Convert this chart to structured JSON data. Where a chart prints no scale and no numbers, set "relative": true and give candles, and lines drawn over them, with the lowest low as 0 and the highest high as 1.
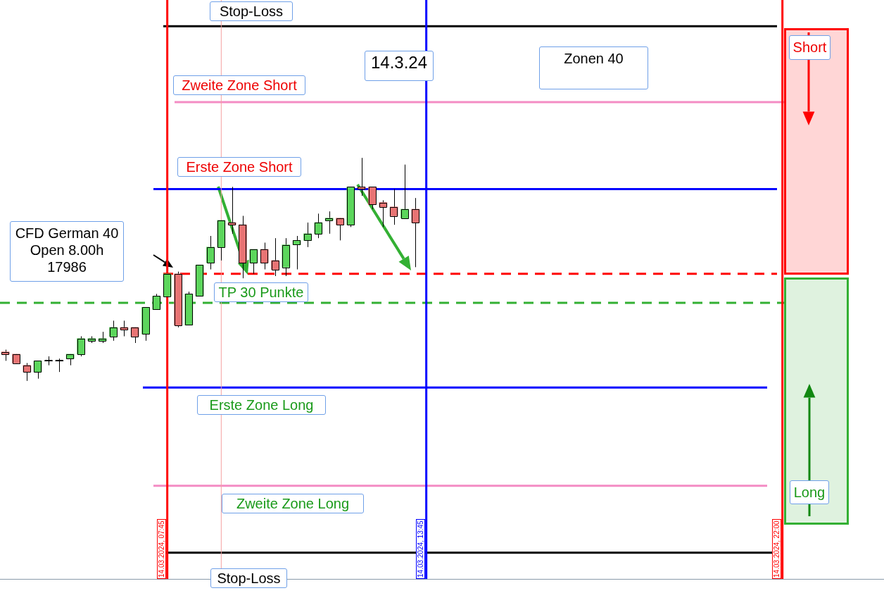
{
  "chart_data": {
    "type": "candlestick",
    "relative": true,
    "categories": [
      null,
      null,
      null,
      null,
      null,
      null,
      null,
      null,
      null,
      null,
      null,
      null,
      null,
      null,
      null,
      null,
      null,
      null,
      null,
      null,
      null,
      null,
      null,
      null,
      null,
      null,
      null,
      null,
      null,
      null,
      null,
      null,
      null,
      null,
      null,
      null,
      null,
      null,
      null
    ],
    "ohlc": [
      [
        0.13,
        0.14,
        0.09,
        0.12
      ],
      [
        0.12,
        0.12,
        0.08,
        0.08
      ],
      [
        0.07,
        0.08,
        0,
        0.04
      ],
      [
        0.04,
        0.09,
        0.01,
        0.09
      ],
      [
        0.09,
        0.11,
        0.07,
        0.09
      ],
      [
        0.09,
        0.1,
        0.04,
        0.09
      ],
      [
        0.1,
        0.12,
        0.07,
        0.12
      ],
      [
        0.12,
        0.2,
        0.11,
        0.19
      ],
      [
        0.18,
        0.2,
        0.17,
        0.19
      ],
      [
        0.18,
        0.22,
        0.17,
        0.19
      ],
      [
        0.2,
        0.27,
        0.18,
        0.24
      ],
      [
        0.24,
        0.27,
        0.2,
        0.23
      ],
      [
        0.24,
        0.24,
        0.17,
        0.2
      ],
      [
        0.21,
        0.33,
        0.18,
        0.33
      ],
      [
        0.32,
        0.39,
        0.32,
        0.38
      ],
      [
        0.38,
        0.48,
        0.38,
        0.48
      ],
      [
        0.48,
        0.49,
        0.24,
        0.25
      ],
      [
        0.25,
        0.4,
        0.25,
        0.39
      ],
      [
        0.38,
        0.52,
        0.38,
        0.52
      ],
      [
        0.53,
        0.65,
        0.5,
        0.6
      ],
      [
        0.6,
        0.72,
        0.54,
        0.72
      ],
      [
        0.71,
        0.87,
        0.66,
        0.7
      ],
      [
        0.7,
        0.74,
        0.46,
        0.53
      ],
      [
        0.53,
        0.59,
        0.48,
        0.59
      ],
      [
        0.59,
        0.62,
        0.5,
        0.53
      ],
      [
        0.54,
        0.64,
        0.47,
        0.5
      ],
      [
        0.51,
        0.64,
        0.47,
        0.61
      ],
      [
        0.61,
        0.65,
        0.5,
        0.63
      ],
      [
        0.63,
        0.71,
        0.6,
        0.66
      ],
      [
        0.66,
        0.75,
        0.64,
        0.71
      ],
      [
        0.72,
        0.76,
        0.66,
        0.73
      ],
      [
        0.73,
        0.73,
        0.63,
        0.7
      ],
      [
        0.7,
        0.87,
        0.69,
        0.87
      ],
      [
        0.87,
        1,
        0.83,
        0.86
      ],
      [
        0.87,
        0.87,
        0.77,
        0.79
      ],
      [
        0.8,
        0.81,
        0.69,
        0.78
      ],
      [
        0.78,
        0.86,
        0.7,
        0.74
      ],
      [
        0.73,
        0.97,
        0.73,
        0.77
      ],
      [
        0.77,
        0.82,
        0.51,
        0.71
      ]
    ],
    "colors": [
      "#e87474",
      "#e87474",
      "#e87474",
      "#5cd65c",
      "#000000",
      "#000000",
      "#5cd65c",
      "#5cd65c",
      "#5cd65c",
      "#5cd65c",
      "#5cd65c",
      "#e87474",
      "#e87474",
      "#5cd65c",
      "#5cd65c",
      "#5cd65c",
      "#e87474",
      "#5cd65c",
      "#5cd65c",
      "#5cd65c",
      "#5cd65c",
      "#e87474",
      "#e87474",
      "#5cd65c",
      "#e87474",
      "#e87474",
      "#5cd65c",
      "#5cd65c",
      "#5cd65c",
      "#5cd65c",
      "#5cd65c",
      "#e87474",
      "#5cd65c",
      "#e87474",
      "#e87474",
      "#e87474",
      "#e87474",
      "#5cd65c",
      "#e87474"
    ],
    "ref_lines": [
      {
        "axis": "y",
        "value": 1.59,
        "label": "Stop-Loss",
        "color": "#000000",
        "line_style": "solid"
      },
      {
        "axis": "y",
        "value": 1.25,
        "label": "Zweite Zone Short",
        "color": "#f48cc4",
        "line_style": "solid"
      },
      {
        "axis": "y",
        "value": 0.86,
        "label": "Erste Zone Short",
        "color": "#0000ff",
        "line_style": "solid"
      },
      {
        "axis": "y",
        "value": 0.48,
        "label": "TP 30 Punkte",
        "color": "#ff0000",
        "line_style": "dashed"
      },
      {
        "axis": "y",
        "value": 0.35,
        "color": "#33b033",
        "line_style": "dashed"
      },
      {
        "axis": "y",
        "value": -0.03,
        "label": "Erste Zone Long",
        "color": "#0000ff",
        "line_style": "solid"
      },
      {
        "axis": "y",
        "value": -0.47,
        "label": "Zweite Zone Long",
        "color": "#f48cc4",
        "line_style": "solid"
      },
      {
        "axis": "y",
        "value": -0.77,
        "label": "Stop-Loss",
        "color": "#000000",
        "line_style": "solid"
      }
    ],
    "annotations": [
      "14.3.24",
      "Zonen 40",
      "CFD German 40\nOpen 8.00h\n17986",
      "Short",
      "Long",
      "14.03.2024, 07:45",
      "14.03.2024, 13:45",
      "14.03.2024, 22:00"
    ]
  }
}
